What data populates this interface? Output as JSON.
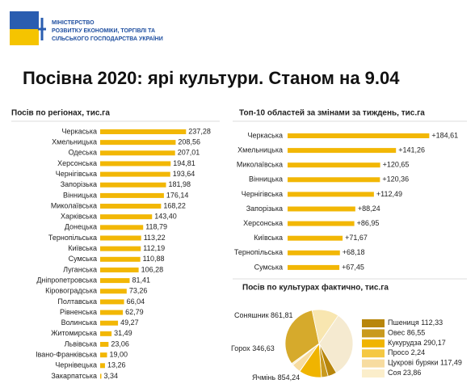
{
  "header": {
    "ministry": [
      "МІНІСТЕРСТВО",
      "РОЗВИТКУ ЕКОНОМІКИ, ТОРГІВЛІ ТА",
      "СІЛЬСЬКОГО ГОСПОДАРСТВА УКРАЇНИ"
    ]
  },
  "title": "Посівна 2020: ярі культури. Станом на 9.04",
  "chart_data": [
    {
      "type": "hbar",
      "title": "Посів по регіонах, тис.га",
      "color": "#f2b705",
      "xlim": [
        0,
        250
      ],
      "categories": [
        "Черкаська",
        "Хмельницька",
        "Одеська",
        "Херсонська",
        "Чернігівська",
        "Запорізька",
        "Вінницька",
        "Миколаївська",
        "Харківська",
        "Донецька",
        "Тернопільська",
        "Київська",
        "Сумська",
        "Луганська",
        "Дніпропетровська",
        "Кіровоградська",
        "Полтавська",
        "Рівненська",
        "Волинська",
        "Житомирська",
        "Львівська",
        "Івано-Франківська",
        "Чернівецька",
        "Закарпатська"
      ],
      "values": [
        237.28,
        208.56,
        207.01,
        194.81,
        193.64,
        181.98,
        176.14,
        168.22,
        143.4,
        118.79,
        113.22,
        112.19,
        110.88,
        106.28,
        81.41,
        73.26,
        66.04,
        62.79,
        49.27,
        31.49,
        23.06,
        19.0,
        13.26,
        3.34
      ],
      "value_labels": [
        "237,28",
        "208,56",
        "207,01",
        "194,81",
        "193,64",
        "181,98",
        "176,14",
        "168,22",
        "143,40",
        "118,79",
        "113,22",
        "112,19",
        "110,88",
        "106,28",
        "81,41",
        "73,26",
        "66,04",
        "62,79",
        "49,27",
        "31,49",
        "23,06",
        "19,00",
        "13,26",
        "3,34"
      ]
    },
    {
      "type": "hbar",
      "title": "Топ-10 областей за змінами  за тиждень, тис.га",
      "color": "#f2b705",
      "xlim": [
        0,
        200
      ],
      "categories": [
        "Черкаська",
        "Хмельницька",
        "Миколаївська",
        "Вінницька",
        "Чернігівська",
        "Запорізька",
        "Херсонська",
        "Київська",
        "Тернопільська",
        "Сумська"
      ],
      "values": [
        184.61,
        141.26,
        120.65,
        120.36,
        112.49,
        88.24,
        86.95,
        71.67,
        68.18,
        67.45
      ],
      "value_labels": [
        "+184,61",
        "+141,26",
        "+120,65",
        "+120,36",
        "+112,49",
        "+88,24",
        "+86,95",
        "+71,67",
        "+68,18",
        "+67,45"
      ]
    },
    {
      "type": "pie",
      "title": "Посів по культурах фактично, тис.га",
      "categories": [
        "Соняшник",
        "Пшениця",
        "Овес",
        "Кукурудза",
        "Просо",
        "Цукрові буряки",
        "Соя",
        "Ячмінь",
        "Горох"
      ],
      "values": [
        861.81,
        112.33,
        86.55,
        290.17,
        2.24,
        117.49,
        23.86,
        854.24,
        346.63
      ],
      "value_labels": [
        "861,81",
        "112,33",
        "86,55",
        "290,17",
        "2,24",
        "117,49",
        "23,86",
        "854,24",
        "346,63"
      ],
      "colors": [
        "#f5ead0",
        "#b8860b",
        "#c99a1e",
        "#f0b400",
        "#f5c842",
        "#f7dca0",
        "#fbeecb",
        "#d6aa2c",
        "#f8e6b0"
      ]
    }
  ]
}
